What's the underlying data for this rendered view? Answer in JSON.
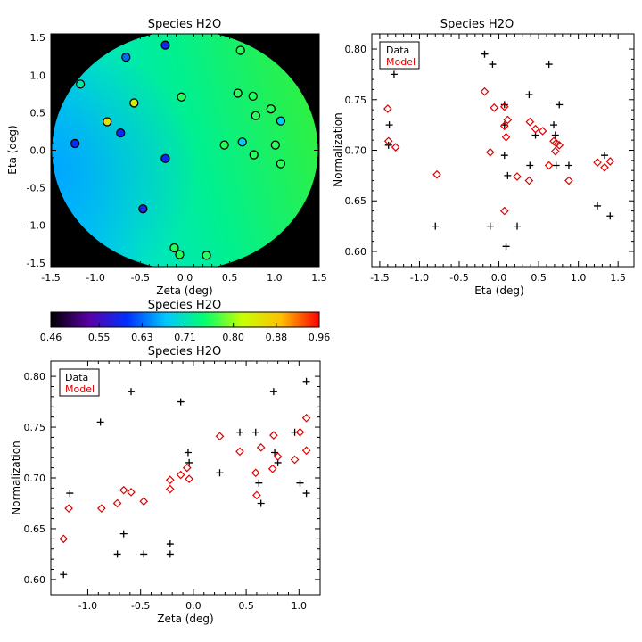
{
  "chart_data": [
    {
      "id": "map",
      "type": "scatter",
      "title": "Species H2O",
      "xlabel": "Zeta (deg)",
      "ylabel": "Eta (deg)",
      "xlim": [
        -1.5,
        1.5
      ],
      "ylim": [
        -1.55,
        1.55
      ],
      "xticks": [
        "-1.5",
        "-1.0",
        "-0.5",
        "0.0",
        "0.5",
        "1.0",
        "1.5"
      ],
      "yticks": [
        "-1.5",
        "-1.0",
        "-0.5",
        "0.0",
        "0.5",
        "1.0",
        "1.5"
      ],
      "background": "field-of-view disk colored by model normalization",
      "points": [
        {
          "zeta": -1.23,
          "eta": 0.09,
          "value": 0.6
        },
        {
          "zeta": -1.17,
          "eta": 0.88,
          "value": 0.72
        },
        {
          "zeta": -0.87,
          "eta": 0.38,
          "value": 0.85
        },
        {
          "zeta": -0.72,
          "eta": 0.23,
          "value": 0.59
        },
        {
          "zeta": -0.66,
          "eta": 1.24,
          "value": 0.63
        },
        {
          "zeta": -0.57,
          "eta": 0.63,
          "value": 0.84
        },
        {
          "zeta": -0.47,
          "eta": -0.78,
          "value": 0.59
        },
        {
          "zeta": -0.22,
          "eta": 1.4,
          "value": 0.59
        },
        {
          "zeta": -0.22,
          "eta": -0.11,
          "value": 0.59
        },
        {
          "zeta": -0.12,
          "eta": -1.3,
          "value": 0.76
        },
        {
          "zeta": -0.06,
          "eta": -1.39,
          "value": 0.76
        },
        {
          "zeta": -0.04,
          "eta": 0.71,
          "value": 0.76
        },
        {
          "zeta": 0.24,
          "eta": -1.4,
          "value": 0.76
        },
        {
          "zeta": 0.44,
          "eta": 0.07,
          "value": 0.76
        },
        {
          "zeta": 0.59,
          "eta": 0.76,
          "value": 0.76
        },
        {
          "zeta": 0.62,
          "eta": 1.33,
          "value": 0.76
        },
        {
          "zeta": 0.64,
          "eta": 0.11,
          "value": 0.68
        },
        {
          "zeta": 0.76,
          "eta": 0.72,
          "value": 0.76
        },
        {
          "zeta": 0.77,
          "eta": -0.06,
          "value": 0.76
        },
        {
          "zeta": 0.79,
          "eta": 0.46,
          "value": 0.76
        },
        {
          "zeta": 0.96,
          "eta": 0.55,
          "value": 0.76
        },
        {
          "zeta": 1.01,
          "eta": 0.07,
          "value": 0.76
        },
        {
          "zeta": 1.07,
          "eta": 0.39,
          "value": 0.68
        },
        {
          "zeta": 1.07,
          "eta": -0.18,
          "value": 0.76
        }
      ]
    },
    {
      "id": "colorbar",
      "type": "colorbar",
      "title": "Species H2O",
      "range": [
        0.46,
        0.96
      ],
      "tick_labels": [
        "0.46",
        "0.55",
        "0.63",
        "0.71",
        "0.80",
        "0.88",
        "0.96"
      ],
      "colors": [
        "#000000",
        "#5a00a8",
        "#0030ff",
        "#00c8ff",
        "#00ff70",
        "#c8ff00",
        "#ffc000",
        "#ff0000"
      ]
    },
    {
      "id": "eta-plot",
      "type": "scatter",
      "title": "Species H2O",
      "xlabel": "Eta (deg)",
      "ylabel": "Normalization",
      "xlim": [
        -1.6,
        1.7
      ],
      "ylim": [
        0.585,
        0.815
      ],
      "xticks": [
        "-1.5",
        "-1.0",
        "-0.5",
        "0.0",
        "0.5",
        "1.0",
        "1.5"
      ],
      "yticks": [
        "0.60",
        "0.65",
        "0.70",
        "0.75",
        "0.80"
      ],
      "legend": {
        "data_label": "Data",
        "model_label": "Model",
        "position": "top-left"
      },
      "series": [
        {
          "name": "Data",
          "marker": "plus",
          "color": "#000000",
          "points": [
            [
              -1.39,
              0.705
            ],
            [
              -1.38,
              0.725
            ],
            [
              -1.32,
              0.775
            ],
            [
              -0.8,
              0.625
            ],
            [
              -0.18,
              0.795
            ],
            [
              -0.11,
              0.625
            ],
            [
              -0.08,
              0.785
            ],
            [
              0.07,
              0.725
            ],
            [
              0.07,
              0.745
            ],
            [
              0.07,
              0.695
            ],
            [
              0.09,
              0.605
            ],
            [
              0.11,
              0.675
            ],
            [
              0.23,
              0.625
            ],
            [
              0.38,
              0.755
            ],
            [
              0.39,
              0.685
            ],
            [
              0.46,
              0.715
            ],
            [
              0.63,
              0.785
            ],
            [
              0.69,
              0.725
            ],
            [
              0.71,
              0.715
            ],
            [
              0.72,
              0.685
            ],
            [
              0.76,
              0.745
            ],
            [
              0.88,
              0.685
            ],
            [
              1.24,
              0.645
            ],
            [
              1.33,
              0.695
            ],
            [
              1.4,
              0.635
            ]
          ]
        },
        {
          "name": "Model",
          "marker": "diamond",
          "color": "#e00000",
          "points": [
            [
              -1.4,
              0.741
            ],
            [
              -1.39,
              0.709
            ],
            [
              -1.3,
              0.703
            ],
            [
              -0.78,
              0.676
            ],
            [
              -0.18,
              0.758
            ],
            [
              -0.11,
              0.698
            ],
            [
              -0.06,
              0.742
            ],
            [
              0.07,
              0.743
            ],
            [
              0.07,
              0.724
            ],
            [
              0.07,
              0.64
            ],
            [
              0.09,
              0.713
            ],
            [
              0.11,
              0.73
            ],
            [
              0.23,
              0.674
            ],
            [
              0.38,
              0.67
            ],
            [
              0.39,
              0.728
            ],
            [
              0.46,
              0.721
            ],
            [
              0.55,
              0.719
            ],
            [
              0.63,
              0.685
            ],
            [
              0.69,
              0.709
            ],
            [
              0.71,
              0.699
            ],
            [
              0.72,
              0.707
            ],
            [
              0.76,
              0.705
            ],
            [
              0.88,
              0.67
            ],
            [
              1.24,
              0.688
            ],
            [
              1.33,
              0.683
            ],
            [
              1.4,
              0.689
            ]
          ]
        }
      ]
    },
    {
      "id": "zeta-plot",
      "type": "scatter",
      "title": "Species H2O",
      "xlabel": "Zeta (deg)",
      "ylabel": "Normalization",
      "xlim": [
        -1.35,
        1.2
      ],
      "ylim": [
        0.585,
        0.815
      ],
      "xticks": [
        "-1.0",
        "-0.5",
        "0.0",
        "0.5",
        "1.0"
      ],
      "yticks": [
        "0.60",
        "0.65",
        "0.70",
        "0.75",
        "0.80"
      ],
      "legend": {
        "data_label": "Data",
        "model_label": "Model",
        "position": "top-left"
      },
      "series": [
        {
          "name": "Data",
          "marker": "plus",
          "color": "#000000",
          "points": [
            [
              -1.23,
              0.605
            ],
            [
              -1.17,
              0.685
            ],
            [
              -0.88,
              0.755
            ],
            [
              -0.72,
              0.625
            ],
            [
              -0.66,
              0.645
            ],
            [
              -0.59,
              0.785
            ],
            [
              -0.47,
              0.625
            ],
            [
              -0.22,
              0.635
            ],
            [
              -0.22,
              0.625
            ],
            [
              -0.12,
              0.775
            ],
            [
              -0.05,
              0.725
            ],
            [
              -0.04,
              0.715
            ],
            [
              0.25,
              0.705
            ],
            [
              0.44,
              0.745
            ],
            [
              0.59,
              0.745
            ],
            [
              0.62,
              0.695
            ],
            [
              0.64,
              0.675
            ],
            [
              0.76,
              0.785
            ],
            [
              0.77,
              0.725
            ],
            [
              0.8,
              0.715
            ],
            [
              0.96,
              0.745
            ],
            [
              1.01,
              0.695
            ],
            [
              1.07,
              0.795
            ],
            [
              1.07,
              0.685
            ]
          ]
        },
        {
          "name": "Model",
          "marker": "diamond",
          "color": "#e00000",
          "points": [
            [
              -1.23,
              0.64
            ],
            [
              -1.18,
              0.67
            ],
            [
              -0.87,
              0.67
            ],
            [
              -0.72,
              0.675
            ],
            [
              -0.66,
              0.688
            ],
            [
              -0.59,
              0.686
            ],
            [
              -0.47,
              0.677
            ],
            [
              -0.22,
              0.698
            ],
            [
              -0.22,
              0.689
            ],
            [
              -0.12,
              0.703
            ],
            [
              -0.06,
              0.71
            ],
            [
              -0.04,
              0.699
            ],
            [
              0.25,
              0.741
            ],
            [
              0.44,
              0.726
            ],
            [
              0.59,
              0.705
            ],
            [
              0.6,
              0.683
            ],
            [
              0.64,
              0.73
            ],
            [
              0.75,
              0.709
            ],
            [
              0.76,
              0.742
            ],
            [
              0.8,
              0.721
            ],
            [
              0.96,
              0.718
            ],
            [
              1.01,
              0.745
            ],
            [
              1.07,
              0.727
            ],
            [
              1.07,
              0.759
            ]
          ]
        }
      ]
    }
  ]
}
